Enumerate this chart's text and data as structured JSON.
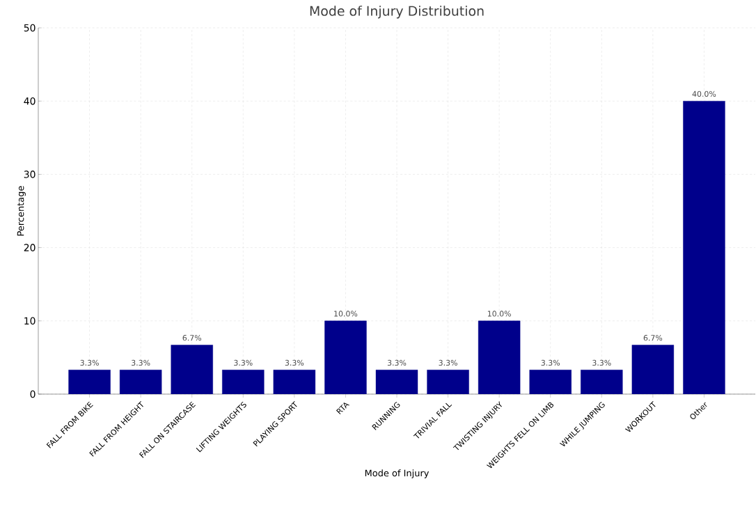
{
  "chart_data": {
    "type": "bar",
    "title": "Mode of Injury Distribution",
    "xlabel": "Mode of Injury",
    "ylabel": "Percentage",
    "categories": [
      "FALL FROM BIKE",
      "FALL FROM HEIGHT",
      "FALL ON STAIRCASE",
      "LIFTING WEIGHTS",
      "PLAYING SPORT",
      "RTA",
      "RUNNING",
      "TRIVIAL FALL",
      "TWISTING INJURY",
      "WEIGHTS FELL ON LIMB",
      "WHILE JUMPING",
      "WORKOUT",
      "Other"
    ],
    "values": [
      3.3,
      3.3,
      6.7,
      3.3,
      3.3,
      10.0,
      3.3,
      3.3,
      10.0,
      3.3,
      3.3,
      6.7,
      40.0
    ],
    "value_labels": [
      "3.3%",
      "3.3%",
      "6.7%",
      "3.3%",
      "3.3%",
      "10.0%",
      "3.3%",
      "3.3%",
      "10.0%",
      "3.3%",
      "3.3%",
      "6.7%",
      "40.0%"
    ],
    "color": "#00008b",
    "ylim": [
      0,
      50
    ],
    "yticks": [
      0,
      10,
      20,
      30,
      40,
      50
    ],
    "grid": true
  }
}
